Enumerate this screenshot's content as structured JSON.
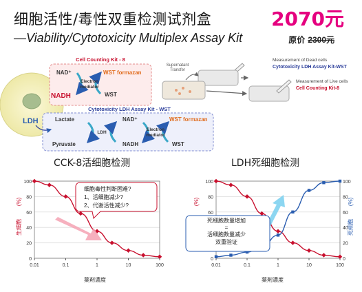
{
  "header": {
    "title_cn": "细胞活性/毒性双重检测试剂盒",
    "title_en": "—Viability/Cytotoxicity Multiplex Assay Kit",
    "price": "2070元",
    "orig_label": "原价",
    "orig_value": "2300元"
  },
  "diagram": {
    "cck_box_title": "Cell Counting Kit - 8",
    "nad_plus": "NAD⁺",
    "nadh": "NADH",
    "wst_formazan": "WST formazan",
    "wst": "WST",
    "electron_mediator": "Electron mediator",
    "ldh_box_title": "Cytotoxicity LDH Assay Kit - WST",
    "lactate": "Lactate",
    "pyruvate": "Pyruvate",
    "ldh": "LDH",
    "supernatant": "Supernatant Transfer",
    "dead_label": "Measurement of Dead cells",
    "dead_kit": "Cytotoxicity LDH Assay Kit-WST",
    "live_label": "Measurement of Live cells",
    "live_kit": "Cell Counting Kit-8"
  },
  "charts": {
    "left_title": "CCK-8活细胞检测",
    "right_title": "LDH死细胞检测",
    "callout_left": [
      "细胞毒性判断困难?",
      "1、活细胞减少?",
      "2、代谢活性减少?"
    ],
    "callout_right": [
      "死细胞数量增加",
      "=",
      "活细胞数量减少",
      "双重验证"
    ],
    "xlabel": "薬剤濃度",
    "ylabel_left": "生細胞",
    "ylabel_right": "死細胞",
    "ylabel_unit": "(%)"
  },
  "chart_data": [
    {
      "type": "line",
      "title": "CCK-8活细胞检测",
      "xlabel": "薬剤濃度",
      "ylabel": "生細胞 (%)",
      "x_scale": "log",
      "xlim": [
        0.01,
        100
      ],
      "ylim": [
        0,
        100
      ],
      "x_ticks": [
        "0.01",
        "0.1",
        "1",
        "10",
        "100"
      ],
      "y_ticks": [
        "0",
        "20",
        "40",
        "60",
        "80",
        "100"
      ],
      "series": [
        {
          "color": "#c8102e",
          "x": [
            0.01,
            0.03,
            0.1,
            0.3,
            1,
            3,
            10,
            30,
            100
          ],
          "y": [
            100,
            95,
            80,
            58,
            35,
            20,
            10,
            4,
            2
          ]
        }
      ]
    },
    {
      "type": "line",
      "title": "LDH死细胞检测",
      "xlabel": "薬剤濃度",
      "ylabel_left": "生細胞 (%)",
      "ylabel_right": "死細胞 (%)",
      "x_scale": "log",
      "xlim": [
        0.01,
        100
      ],
      "ylim": [
        0,
        100
      ],
      "x_ticks": [
        "0.01",
        "0.1",
        "1",
        "10",
        "100"
      ],
      "y_ticks": [
        "0",
        "20",
        "40",
        "60",
        "80",
        "100"
      ],
      "series": [
        {
          "color": "#c8102e",
          "x": [
            0.01,
            0.03,
            0.1,
            0.3,
            1,
            3,
            10,
            30,
            100
          ],
          "y": [
            100,
            95,
            80,
            58,
            35,
            20,
            10,
            4,
            2
          ]
        },
        {
          "color": "#2a5db0",
          "x": [
            0.01,
            0.03,
            0.1,
            0.3,
            1,
            3,
            10,
            30,
            100
          ],
          "y": [
            2,
            4,
            8,
            15,
            30,
            60,
            88,
            98,
            100
          ]
        }
      ]
    }
  ]
}
